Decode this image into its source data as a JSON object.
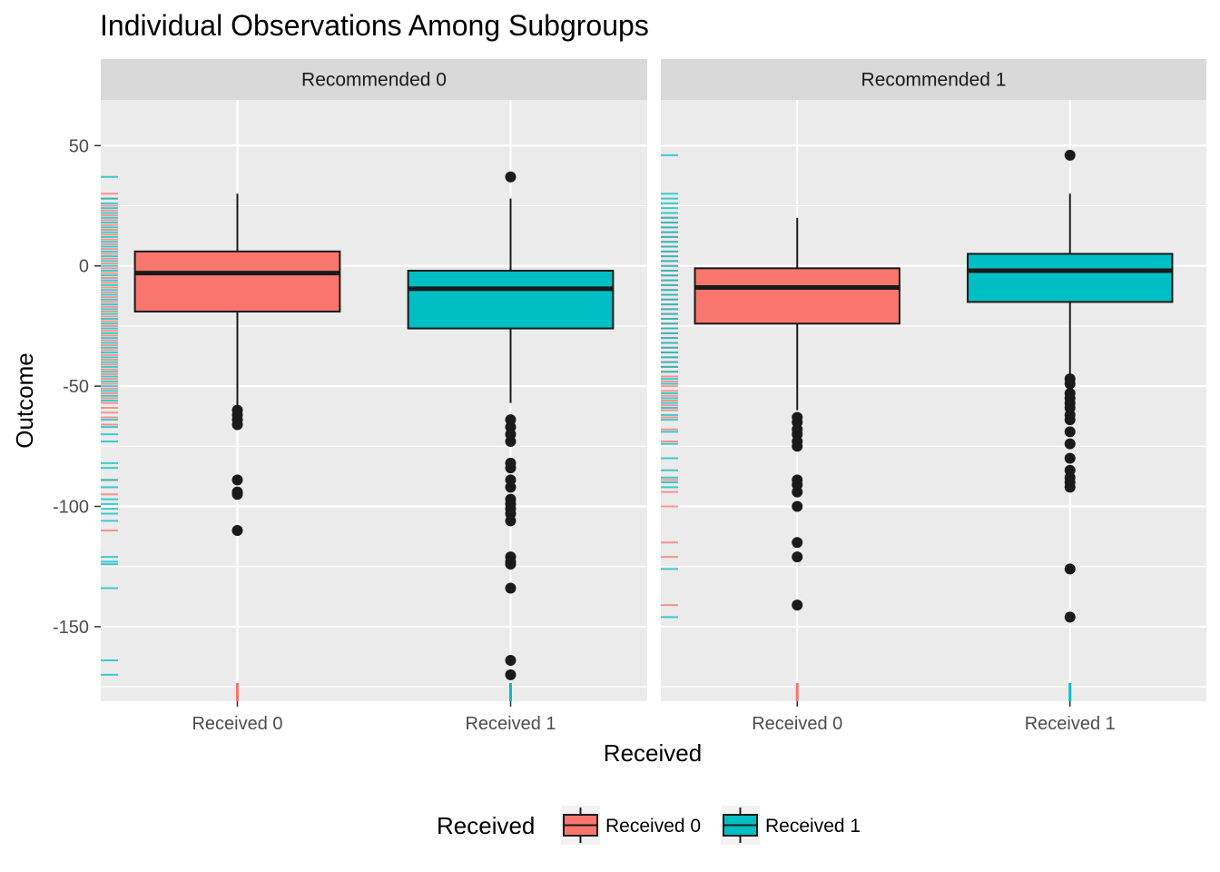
{
  "chart_data": {
    "type": "boxplot",
    "title": "Individual Observations Among Subgroups",
    "xlabel": "Received",
    "ylabel": "Outcome",
    "ylim": [
      -181,
      69
    ],
    "yticks": [
      50,
      0,
      -50,
      -100,
      -150
    ],
    "categories": [
      "Received 0",
      "Received 1"
    ],
    "colors": {
      "Received 0": "#f8766d",
      "Received 1": "#00bfc4"
    },
    "panels": [
      {
        "label": "Recommended 0",
        "boxes": [
          {
            "category": "Received 0",
            "q1": -19,
            "median": -3,
            "q3": 6,
            "whisker_low": -58,
            "whisker_high": 30,
            "outliers": [
              -60,
              -62,
              -64,
              -66,
              -89,
              -94,
              -95,
              -110
            ]
          },
          {
            "category": "Received 1",
            "q1": -26,
            "median": -9.5,
            "q3": -2,
            "whisker_low": -57,
            "whisker_high": 28,
            "outliers": [
              37,
              -64,
              -67,
              -70,
              -73,
              -82,
              -84,
              -89,
              -92,
              -97,
              -99,
              -101,
              -103,
              -106,
              -121,
              -123,
              -124,
              -134,
              -164,
              -170
            ]
          }
        ],
        "rug": {
          "Received 0": [
            30,
            28,
            25,
            23,
            21,
            19,
            17,
            15,
            13,
            11,
            9,
            7,
            5,
            3,
            1,
            -1,
            -3,
            -5,
            -7,
            -9,
            -11,
            -13,
            -15,
            -17,
            -19,
            -21,
            -23,
            -25,
            -27,
            -29,
            -31,
            -33,
            -35,
            -37,
            -39,
            -41,
            -43,
            -45,
            -47,
            -49,
            -51,
            -53,
            -55,
            -57,
            -59,
            -61,
            -63,
            -66,
            -89,
            -95,
            -110
          ],
          "Received 1": [
            37,
            28,
            26,
            24,
            22,
            20,
            18,
            16,
            14,
            12,
            10,
            8,
            6,
            4,
            2,
            0,
            -2,
            -4,
            -6,
            -8,
            -10,
            -12,
            -14,
            -16,
            -18,
            -20,
            -22,
            -24,
            -26,
            -28,
            -30,
            -32,
            -34,
            -36,
            -38,
            -40,
            -42,
            -44,
            -46,
            -48,
            -50,
            -52,
            -54,
            -56,
            -64,
            -67,
            -70,
            -73,
            -82,
            -84,
            -89,
            -92,
            -97,
            -99,
            -101,
            -103,
            -106,
            -121,
            -123,
            -124,
            -134,
            -164,
            -170
          ]
        }
      },
      {
        "label": "Recommended 1",
        "boxes": [
          {
            "category": "Received 0",
            "q1": -24,
            "median": -9,
            "q3": -1,
            "whisker_low": -60,
            "whisker_high": 20,
            "outliers": [
              -63,
              -65,
              -68,
              -70,
              -73,
              -75,
              -89,
              -91,
              -94,
              -100,
              -115,
              -121,
              -141
            ]
          },
          {
            "category": "Received 1",
            "q1": -15,
            "median": -2,
            "q3": 5,
            "whisker_low": -46,
            "whisker_high": 30,
            "outliers": [
              46,
              -47,
              -49,
              -53,
              -55,
              -57,
              -59,
              -62,
              -64,
              -69,
              -74,
              -80,
              -85,
              -88,
              -90,
              -92,
              -126,
              -146
            ]
          }
        ],
        "rug": {
          "Received 0": [
            20,
            18,
            16,
            14,
            12,
            10,
            8,
            6,
            4,
            2,
            0,
            -2,
            -4,
            -6,
            -8,
            -10,
            -12,
            -14,
            -16,
            -18,
            -20,
            -22,
            -24,
            -26,
            -28,
            -30,
            -32,
            -34,
            -36,
            -38,
            -40,
            -42,
            -44,
            -46,
            -48,
            -50,
            -52,
            -54,
            -56,
            -58,
            -60,
            -63,
            -68,
            -73,
            -89,
            -94,
            -100,
            -115,
            -121,
            -141
          ],
          "Received 1": [
            46,
            30,
            28,
            26,
            24,
            22,
            20,
            18,
            16,
            14,
            12,
            10,
            8,
            6,
            4,
            2,
            0,
            -2,
            -4,
            -6,
            -8,
            -10,
            -12,
            -14,
            -16,
            -18,
            -20,
            -22,
            -24,
            -26,
            -28,
            -30,
            -32,
            -34,
            -36,
            -38,
            -40,
            -42,
            -44,
            -47,
            -49,
            -53,
            -55,
            -57,
            -59,
            -62,
            -64,
            -69,
            -74,
            -80,
            -85,
            -88,
            -90,
            -92,
            -126,
            -146
          ]
        }
      }
    ],
    "legend": {
      "title": "Received",
      "position": "bottom",
      "items": [
        "Received 0",
        "Received 1"
      ]
    }
  }
}
